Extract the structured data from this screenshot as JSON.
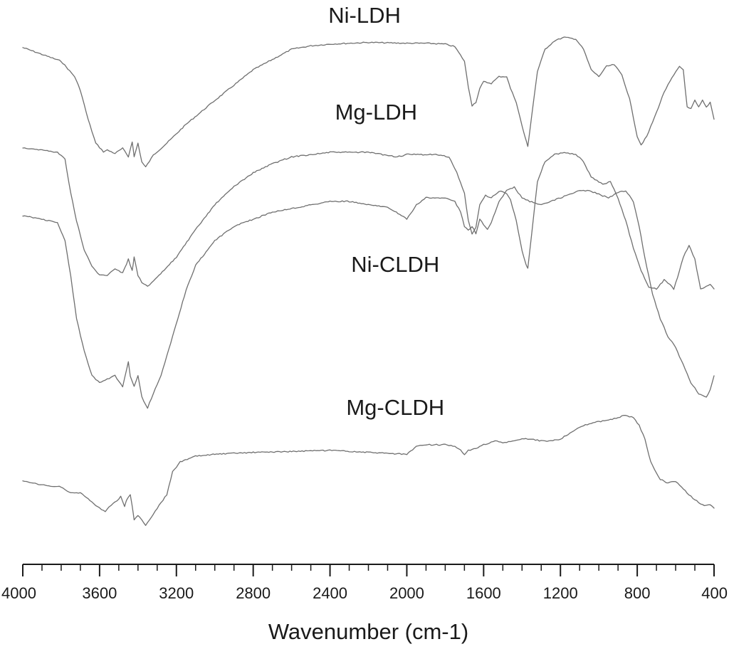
{
  "chart_data": {
    "type": "line",
    "title": "",
    "xlabel": "Wavenumber (cm-1)",
    "ylabel": "",
    "xlim": [
      4000,
      400
    ],
    "x_reversed": true,
    "y_axis_shown": false,
    "grid": false,
    "legend": "none (labels placed above each curve)",
    "x_major_ticks": [
      4000,
      3600,
      3200,
      2800,
      2400,
      2000,
      1600,
      1200,
      800,
      400
    ],
    "x_tick_labels": [
      "4000",
      "3600",
      "3200",
      "2800",
      "2400",
      "2000",
      "1600",
      "1200",
      "800",
      "400"
    ],
    "x_minor_step": 100,
    "y_units": "relative transmittance (stacked, offset)",
    "line_color": "#6f6f6f",
    "series": [
      {
        "name": "Ni-LDH",
        "label_x": 2220,
        "points": [
          [
            4000,
            88
          ],
          [
            3900,
            84
          ],
          [
            3800,
            80
          ],
          [
            3730,
            71
          ],
          [
            3700,
            63
          ],
          [
            3660,
            46
          ],
          [
            3620,
            32
          ],
          [
            3580,
            27
          ],
          [
            3560,
            28
          ],
          [
            3520,
            26
          ],
          [
            3480,
            29
          ],
          [
            3450,
            24
          ],
          [
            3430,
            33
          ],
          [
            3420,
            24
          ],
          [
            3400,
            32
          ],
          [
            3380,
            21
          ],
          [
            3360,
            18
          ],
          [
            3320,
            25
          ],
          [
            3250,
            32
          ],
          [
            3150,
            43
          ],
          [
            3000,
            57
          ],
          [
            2900,
            66
          ],
          [
            2800,
            75
          ],
          [
            2700,
            81
          ],
          [
            2600,
            87
          ],
          [
            2500,
            89
          ],
          [
            2400,
            90
          ],
          [
            2200,
            91
          ],
          [
            2000,
            90.5
          ],
          [
            1900,
            90.5
          ],
          [
            1800,
            90
          ],
          [
            1750,
            88.5
          ],
          [
            1700,
            80
          ],
          [
            1680,
            65
          ],
          [
            1660,
            54
          ],
          [
            1640,
            56
          ],
          [
            1620,
            64
          ],
          [
            1600,
            68
          ],
          [
            1560,
            67
          ],
          [
            1520,
            71
          ],
          [
            1480,
            71
          ],
          [
            1460,
            64
          ],
          [
            1430,
            56
          ],
          [
            1400,
            42
          ],
          [
            1385,
            36
          ],
          [
            1370,
            30
          ],
          [
            1350,
            48
          ],
          [
            1320,
            74
          ],
          [
            1280,
            87
          ],
          [
            1230,
            92
          ],
          [
            1180,
            94
          ],
          [
            1120,
            93
          ],
          [
            1080,
            87
          ],
          [
            1040,
            75
          ],
          [
            1000,
            71
          ],
          [
            960,
            77
          ],
          [
            920,
            78
          ],
          [
            880,
            72
          ],
          [
            840,
            58
          ],
          [
            800,
            36
          ],
          [
            780,
            31
          ],
          [
            750,
            36
          ],
          [
            700,
            50
          ],
          [
            660,
            62
          ],
          [
            620,
            70
          ],
          [
            580,
            77
          ],
          [
            560,
            75
          ],
          [
            540,
            53
          ],
          [
            520,
            52
          ],
          [
            500,
            57
          ],
          [
            480,
            53
          ],
          [
            460,
            57
          ],
          [
            440,
            53
          ],
          [
            420,
            56
          ],
          [
            400,
            46
          ]
        ]
      },
      {
        "name": "Mg-LDH",
        "label_x": 2160,
        "points": [
          [
            4000,
            72
          ],
          [
            3900,
            71
          ],
          [
            3820,
            70
          ],
          [
            3780,
            67
          ],
          [
            3750,
            52
          ],
          [
            3720,
            40
          ],
          [
            3680,
            27
          ],
          [
            3640,
            20
          ],
          [
            3600,
            16
          ],
          [
            3560,
            16
          ],
          [
            3520,
            19
          ],
          [
            3480,
            17
          ],
          [
            3450,
            23
          ],
          [
            3430,
            18
          ],
          [
            3420,
            24
          ],
          [
            3400,
            16
          ],
          [
            3380,
            13
          ],
          [
            3350,
            11
          ],
          [
            3300,
            15
          ],
          [
            3200,
            24
          ],
          [
            3100,
            36
          ],
          [
            3000,
            47
          ],
          [
            2900,
            55
          ],
          [
            2800,
            61
          ],
          [
            2700,
            65
          ],
          [
            2600,
            68
          ],
          [
            2500,
            69
          ],
          [
            2400,
            70
          ],
          [
            2200,
            70
          ],
          [
            2050,
            68
          ],
          [
            2000,
            69
          ],
          [
            1850,
            69
          ],
          [
            1780,
            68
          ],
          [
            1740,
            61
          ],
          [
            1700,
            52
          ],
          [
            1680,
            40
          ],
          [
            1660,
            34
          ],
          [
            1640,
            37
          ],
          [
            1620,
            47
          ],
          [
            1590,
            51
          ],
          [
            1560,
            50
          ],
          [
            1520,
            53
          ],
          [
            1480,
            52
          ],
          [
            1460,
            49
          ],
          [
            1430,
            40
          ],
          [
            1400,
            27
          ],
          [
            1380,
            21
          ],
          [
            1370,
            19
          ],
          [
            1350,
            34
          ],
          [
            1320,
            57
          ],
          [
            1280,
            66
          ],
          [
            1230,
            69
          ],
          [
            1180,
            70
          ],
          [
            1120,
            69
          ],
          [
            1080,
            66
          ],
          [
            1040,
            59
          ],
          [
            980,
            56
          ],
          [
            940,
            57
          ],
          [
            900,
            50
          ],
          [
            860,
            40
          ],
          [
            820,
            28
          ],
          [
            780,
            18
          ],
          [
            740,
            11
          ],
          [
            700,
            10
          ],
          [
            660,
            14
          ],
          [
            630,
            12
          ],
          [
            610,
            10
          ],
          [
            590,
            15
          ],
          [
            560,
            24
          ],
          [
            530,
            29
          ],
          [
            500,
            23
          ],
          [
            470,
            10
          ],
          [
            440,
            11
          ],
          [
            420,
            12
          ],
          [
            400,
            10
          ]
        ]
      },
      {
        "name": "Ni-CLDH",
        "label_x": 2060,
        "points": [
          [
            4000,
            67
          ],
          [
            3900,
            66
          ],
          [
            3820,
            65
          ],
          [
            3780,
            60
          ],
          [
            3750,
            50
          ],
          [
            3720,
            38
          ],
          [
            3680,
            29
          ],
          [
            3640,
            22
          ],
          [
            3600,
            20
          ],
          [
            3560,
            21
          ],
          [
            3520,
            22
          ],
          [
            3480,
            19
          ],
          [
            3450,
            26
          ],
          [
            3440,
            22
          ],
          [
            3420,
            19
          ],
          [
            3400,
            22
          ],
          [
            3380,
            16
          ],
          [
            3350,
            13
          ],
          [
            3320,
            17
          ],
          [
            3280,
            22
          ],
          [
            3220,
            33
          ],
          [
            3150,
            46
          ],
          [
            3100,
            53
          ],
          [
            3000,
            60
          ],
          [
            2900,
            64
          ],
          [
            2800,
            66
          ],
          [
            2700,
            68
          ],
          [
            2600,
            69
          ],
          [
            2500,
            70
          ],
          [
            2400,
            71
          ],
          [
            2300,
            71
          ],
          [
            2200,
            70
          ],
          [
            2100,
            69.5
          ],
          [
            2000,
            66
          ],
          [
            1950,
            70
          ],
          [
            1900,
            72
          ],
          [
            1800,
            72
          ],
          [
            1750,
            71
          ],
          [
            1720,
            68
          ],
          [
            1700,
            64
          ],
          [
            1680,
            63
          ],
          [
            1660,
            64
          ],
          [
            1640,
            62
          ],
          [
            1620,
            66
          ],
          [
            1580,
            63
          ],
          [
            1560,
            65
          ],
          [
            1520,
            71
          ],
          [
            1480,
            74
          ],
          [
            1440,
            75
          ],
          [
            1400,
            72
          ],
          [
            1360,
            71
          ],
          [
            1300,
            70
          ],
          [
            1250,
            71
          ],
          [
            1200,
            72
          ],
          [
            1150,
            73
          ],
          [
            1100,
            74
          ],
          [
            1050,
            74
          ],
          [
            1000,
            73
          ],
          [
            950,
            72
          ],
          [
            900,
            73.5
          ],
          [
            860,
            74
          ],
          [
            820,
            71
          ],
          [
            790,
            64
          ],
          [
            760,
            55
          ],
          [
            720,
            45
          ],
          [
            680,
            38
          ],
          [
            640,
            33
          ],
          [
            600,
            30
          ],
          [
            560,
            25
          ],
          [
            520,
            20
          ],
          [
            480,
            17
          ],
          [
            440,
            16
          ],
          [
            420,
            18
          ],
          [
            400,
            22
          ]
        ]
      },
      {
        "name": "Mg-CLDH",
        "label_x": 2060,
        "points": [
          [
            4000,
            34
          ],
          [
            3900,
            32
          ],
          [
            3800,
            31
          ],
          [
            3750,
            28
          ],
          [
            3700,
            28
          ],
          [
            3650,
            24
          ],
          [
            3600,
            20
          ],
          [
            3570,
            18
          ],
          [
            3550,
            21
          ],
          [
            3520,
            23
          ],
          [
            3490,
            26
          ],
          [
            3470,
            21
          ],
          [
            3460,
            24
          ],
          [
            3440,
            27
          ],
          [
            3430,
            21
          ],
          [
            3420,
            14
          ],
          [
            3400,
            16
          ],
          [
            3380,
            14
          ],
          [
            3360,
            11
          ],
          [
            3300,
            20
          ],
          [
            3250,
            27
          ],
          [
            3220,
            39
          ],
          [
            3180,
            44
          ],
          [
            3100,
            47
          ],
          [
            3000,
            48
          ],
          [
            2800,
            49
          ],
          [
            2600,
            49.5
          ],
          [
            2400,
            50
          ],
          [
            2200,
            49
          ],
          [
            2100,
            48.5
          ],
          [
            2000,
            48
          ],
          [
            1950,
            52
          ],
          [
            1900,
            53
          ],
          [
            1800,
            53
          ],
          [
            1750,
            52
          ],
          [
            1720,
            50
          ],
          [
            1700,
            48
          ],
          [
            1680,
            50
          ],
          [
            1640,
            51
          ],
          [
            1600,
            53
          ],
          [
            1540,
            55
          ],
          [
            1500,
            54
          ],
          [
            1440,
            55
          ],
          [
            1400,
            56
          ],
          [
            1360,
            56
          ],
          [
            1300,
            55
          ],
          [
            1250,
            55
          ],
          [
            1200,
            56
          ],
          [
            1150,
            59
          ],
          [
            1100,
            62
          ],
          [
            1050,
            64
          ],
          [
            1000,
            65
          ],
          [
            950,
            66
          ],
          [
            900,
            67
          ],
          [
            860,
            68.5
          ],
          [
            820,
            67
          ],
          [
            790,
            63
          ],
          [
            760,
            56
          ],
          [
            730,
            44
          ],
          [
            700,
            38
          ],
          [
            680,
            35
          ],
          [
            640,
            33
          ],
          [
            600,
            34
          ],
          [
            560,
            30
          ],
          [
            520,
            26
          ],
          [
            480,
            23
          ],
          [
            450,
            21
          ],
          [
            420,
            22
          ],
          [
            400,
            20
          ]
        ]
      }
    ]
  }
}
